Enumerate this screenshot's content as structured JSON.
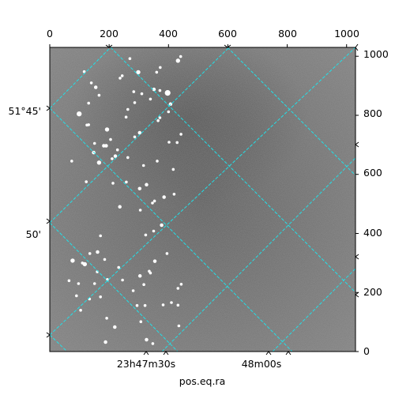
{
  "chart_data": {
    "type": "image",
    "pixel_axes": {
      "x_ticks": [
        0,
        200,
        400,
        600,
        800,
        1000
      ],
      "y_ticks": [
        0,
        200,
        400,
        600,
        800,
        1000
      ],
      "x_tick_labels": [
        "0",
        "200",
        "400",
        "600",
        "800",
        "1000"
      ],
      "y_tick_labels": [
        "0",
        "200",
        "400",
        "600",
        "800",
        "1000"
      ],
      "xlim": [
        0,
        1030
      ],
      "ylim": [
        0,
        1030
      ]
    },
    "world_axes": {
      "ra_tick_labels": [
        "23h47m30s",
        "48m00s"
      ],
      "dec_tick_labels": [
        "51°45'",
        "50'"
      ]
    },
    "xlabel": "pos.eq.ra",
    "grid": true,
    "grid_style": "dashed",
    "image_style": "grayscale star field with a dark region upper center",
    "colors": {
      "grid": "#22e0e8",
      "frame": "#000000",
      "sky": "#6a6a6a"
    },
    "stars": [
      [
        99,
        805,
        7
      ],
      [
        193,
        752,
        6
      ],
      [
        298,
        946,
        6
      ],
      [
        351,
        888,
        5
      ],
      [
        397,
        876,
        8
      ],
      [
        407,
        838,
        5
      ],
      [
        432,
        985,
        6
      ],
      [
        155,
        895,
        5
      ],
      [
        166,
        640,
        6
      ],
      [
        221,
        662,
        5
      ],
      [
        236,
        490,
        5
      ],
      [
        303,
        741,
        5
      ],
      [
        326,
        565,
        5
      ],
      [
        148,
        674,
        5
      ],
      [
        182,
        697,
        5
      ],
      [
        190,
        697,
        5
      ],
      [
        118,
        296,
        6
      ],
      [
        77,
        308,
        6
      ],
      [
        161,
        337,
        5
      ],
      [
        219,
        83,
        5
      ],
      [
        304,
        256,
        5
      ],
      [
        263,
        657,
        4
      ],
      [
        350,
        408,
        4
      ],
      [
        371,
        792,
        4
      ],
      [
        377,
        428,
        5
      ],
      [
        354,
        306,
        5
      ],
      [
        385,
        523,
        5
      ],
      [
        74,
        645,
        4
      ],
      [
        140,
        910,
        4
      ],
      [
        116,
        948,
        4
      ],
      [
        365,
        782,
        4
      ],
      [
        323,
        395,
        4
      ],
      [
        303,
        552,
        5
      ],
      [
        166,
        868,
        4
      ],
      [
        205,
        718,
        4
      ],
      [
        310,
        873,
        4
      ],
      [
        257,
        794,
        4
      ],
      [
        441,
        999,
        4
      ],
      [
        416,
        617,
        4
      ],
      [
        442,
        736,
        4
      ],
      [
        335,
        272,
        4
      ],
      [
        353,
        510,
        4
      ],
      [
        346,
        503,
        4
      ],
      [
        151,
        705,
        4
      ],
      [
        131,
        768,
        4
      ],
      [
        125,
        767,
        4
      ],
      [
        151,
        230,
        4
      ],
      [
        134,
        178,
        4
      ],
      [
        432,
        214,
        4
      ],
      [
        395,
        332,
        4
      ],
      [
        410,
        166,
        4
      ],
      [
        443,
        228,
        4
      ],
      [
        213,
        570,
        4
      ],
      [
        258,
        574,
        4
      ],
      [
        294,
        156,
        4
      ],
      [
        317,
        227,
        4
      ],
      [
        321,
        156,
        4
      ],
      [
        339,
        266,
        4
      ],
      [
        97,
        230,
        4
      ],
      [
        194,
        244,
        4
      ],
      [
        232,
        285,
        4
      ],
      [
        188,
        32,
        5
      ],
      [
        65,
        240,
        4
      ],
      [
        263,
        820,
        4
      ],
      [
        286,
        727,
        4
      ],
      [
        316,
        630,
        4
      ],
      [
        160,
        270,
        4
      ],
      [
        104,
        140,
        4
      ],
      [
        400,
        812,
        4
      ],
      [
        371,
        884,
        4
      ],
      [
        283,
        880,
        4
      ],
      [
        237,
        926,
        4
      ],
      [
        326,
        40,
        5
      ],
      [
        347,
        27,
        4
      ],
      [
        382,
        158,
        4
      ],
      [
        307,
        101,
        4
      ],
      [
        435,
        87,
        4
      ],
      [
        432,
        157,
        4
      ],
      [
        281,
        206,
        4
      ],
      [
        245,
        242,
        4
      ],
      [
        135,
        332,
        4
      ],
      [
        123,
        575,
        4
      ],
      [
        210,
        653,
        4
      ],
      [
        228,
        683,
        4
      ],
      [
        131,
        841,
        4
      ],
      [
        360,
        946,
        4
      ],
      [
        339,
        855,
        4
      ],
      [
        372,
        962,
        4
      ],
      [
        270,
        992,
        4
      ],
      [
        402,
        709,
        4
      ],
      [
        429,
        708,
        4
      ],
      [
        419,
        533,
        4
      ],
      [
        305,
        479,
        4
      ],
      [
        362,
        645,
        4
      ],
      [
        286,
        843,
        4
      ],
      [
        244,
        934,
        4
      ],
      [
        90,
        189,
        4
      ],
      [
        110,
        300,
        4
      ],
      [
        171,
        392,
        4
      ],
      [
        185,
        312,
        4
      ],
      [
        171,
        185,
        4
      ],
      [
        192,
        113,
        4
      ]
    ]
  }
}
